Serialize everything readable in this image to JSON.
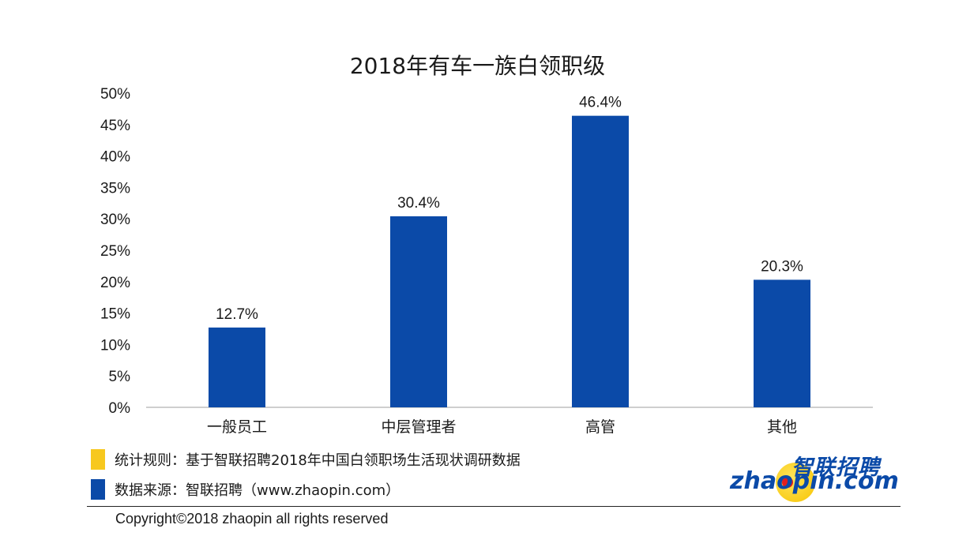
{
  "chart_data": {
    "type": "bar",
    "title": "2018年有车一族白领职级",
    "categories": [
      "一般员工",
      "中层管理者",
      "高管",
      "其他"
    ],
    "values": [
      12.7,
      30.4,
      46.4,
      20.3
    ],
    "data_labels": [
      "12.7%",
      "30.4%",
      "46.4%",
      "20.3%"
    ],
    "ylim": [
      0,
      50
    ],
    "yticks": [
      "0%",
      "5%",
      "10%",
      "15%",
      "20%",
      "25%",
      "30%",
      "35%",
      "40%",
      "45%",
      "50%"
    ],
    "bar_color": "#0b4aa8",
    "grid": false
  },
  "legend": {
    "items": [
      {
        "label": "统计规则：基于智联招聘2018年中国白领职场生活现状调研数据",
        "color": "#f7c81e"
      },
      {
        "label": "数据来源：智联招聘（www.zhaopin.com）",
        "color": "#0b4aa8"
      }
    ]
  },
  "logo": {
    "cn": "智联招聘",
    "en": "zhaopin.com"
  },
  "footer": {
    "copyright": "Copyright©2018 zhaopin all rights reserved"
  }
}
